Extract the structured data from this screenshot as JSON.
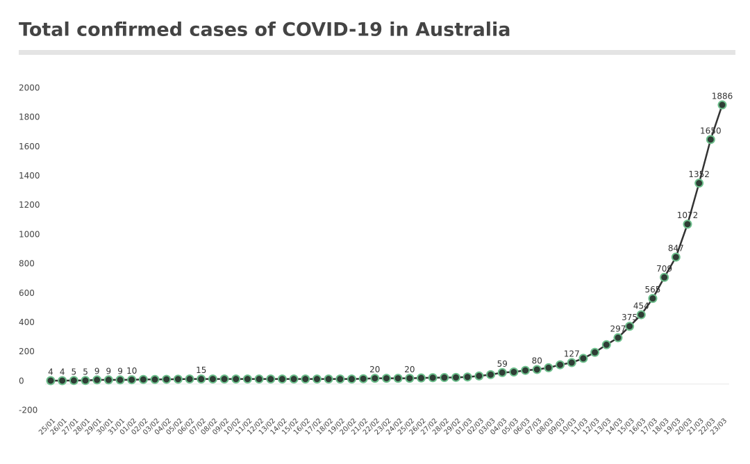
{
  "chart_data": {
    "type": "line",
    "title": "Total confirmed cases of COVID-19 in Australia",
    "categories": [
      "25/01",
      "26/01",
      "27/01",
      "28/01",
      "29/01",
      "30/01",
      "31/01",
      "01/02",
      "02/02",
      "03/02",
      "04/02",
      "05/02",
      "06/02",
      "07/02",
      "08/02",
      "09/02",
      "10/02",
      "11/02",
      "12/02",
      "13/02",
      "14/02",
      "15/02",
      "16/02",
      "17/02",
      "18/02",
      "19/02",
      "20/02",
      "21/02",
      "22/02",
      "23/02",
      "24/02",
      "25/02",
      "26/02",
      "27/02",
      "28/02",
      "29/02",
      "01/03",
      "02/03",
      "03/03",
      "04/03",
      "05/03",
      "06/03",
      "07/03",
      "08/03",
      "09/03",
      "10/03",
      "11/03",
      "12/03",
      "13/03",
      "14/03",
      "15/03",
      "16/03",
      "17/03",
      "18/03",
      "19/03",
      "20/03",
      "21/03",
      "22/03",
      "23/03"
    ],
    "series": [
      {
        "name": "Total confirmed cases",
        "color": "#333333",
        "marker_color": "#2f3d35",
        "marker_edge": "#6dbf8c",
        "values": [
          4,
          4,
          5,
          5,
          9,
          9,
          9,
          10,
          12,
          12,
          13,
          14,
          15,
          15,
          15,
          15,
          15,
          15,
          15,
          15,
          15,
          15,
          15,
          15,
          15,
          15,
          15,
          17,
          20,
          20,
          20,
          20,
          22,
          24,
          25,
          26,
          29,
          36,
          45,
          59,
          63,
          74,
          80,
          92,
          112,
          127,
          156,
          197,
          249,
          297,
          375,
          454,
          565,
          709,
          847,
          1072,
          1352,
          1650,
          1886
        ],
        "value_labels": [
          "4",
          "4",
          "5",
          "5",
          "9",
          "9",
          "9",
          "10",
          null,
          null,
          null,
          null,
          null,
          "15",
          null,
          null,
          null,
          null,
          null,
          null,
          null,
          null,
          null,
          null,
          null,
          null,
          null,
          null,
          "20",
          null,
          null,
          "20",
          null,
          null,
          null,
          null,
          null,
          null,
          null,
          "59",
          null,
          null,
          "80",
          null,
          null,
          "127",
          null,
          null,
          null,
          "297",
          "375",
          "454",
          "565",
          "709",
          "847",
          "1072",
          "1352",
          "1650",
          "1886"
        ]
      }
    ],
    "ylim": [
      -200,
      2000
    ],
    "yticks": [
      -200,
      0,
      200,
      400,
      600,
      800,
      1000,
      1200,
      1400,
      1600,
      1800,
      2000
    ],
    "grid": false
  }
}
